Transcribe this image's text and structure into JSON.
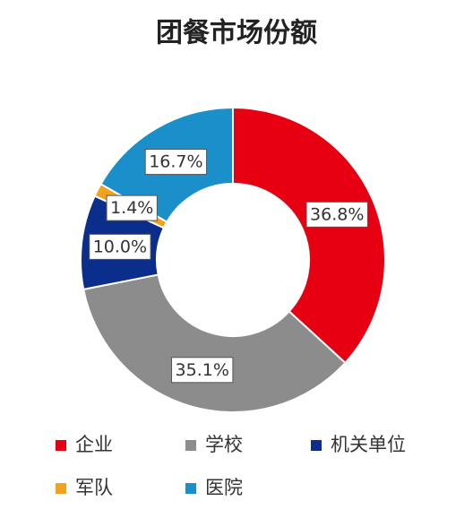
{
  "chart_data": {
    "type": "pie",
    "title": "团餐市场份额",
    "categories": [
      "企业",
      "学校",
      "机关单位",
      "军队",
      "医院"
    ],
    "values": [
      36.8,
      35.1,
      10.0,
      1.4,
      16.7
    ],
    "value_labels": [
      "36.8%",
      "35.1%",
      "10.0%",
      "1.4%",
      "16.7%"
    ],
    "colors": [
      "#e60012",
      "#8c8c8c",
      "#0b2d8c",
      "#f0a41e",
      "#1b8fc9"
    ]
  }
}
